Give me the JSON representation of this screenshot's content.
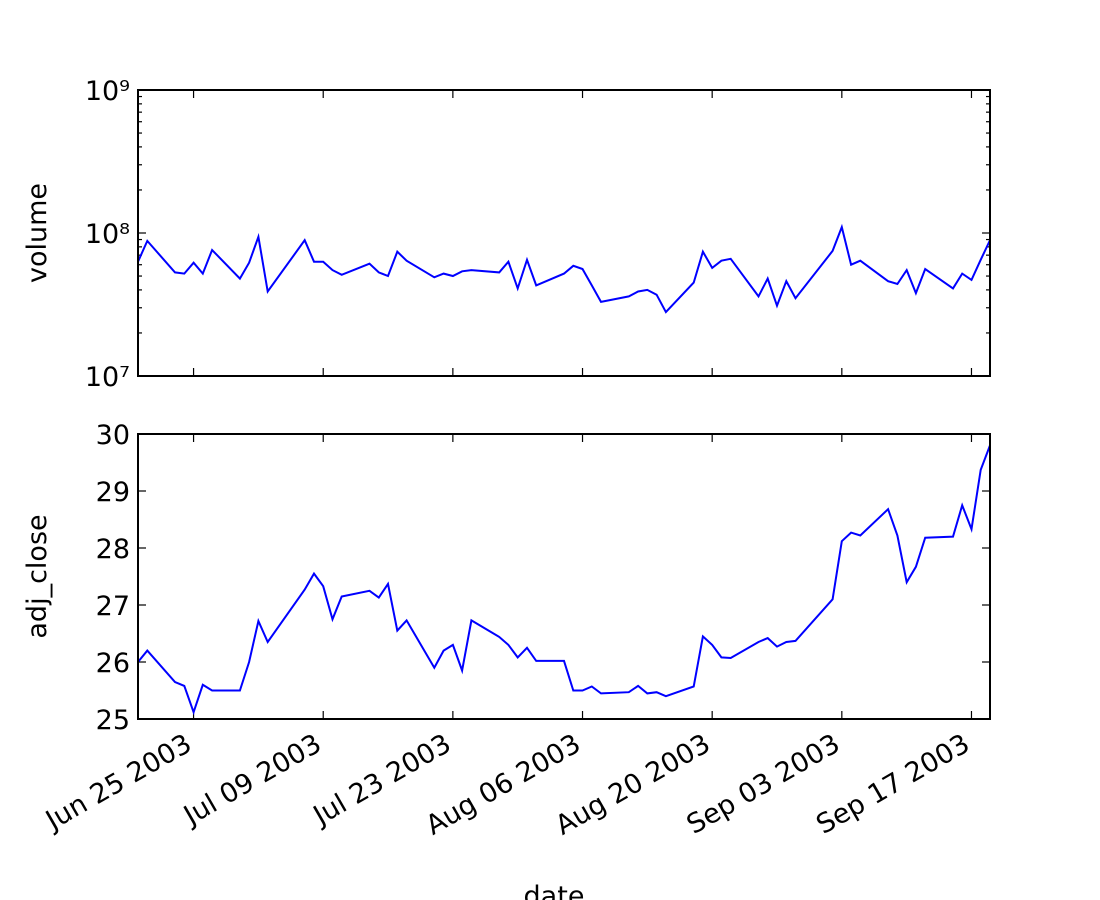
{
  "chart_data": [
    {
      "type": "line",
      "ylabel": "volume",
      "log_scale": true,
      "color": "#0000ff",
      "xlim": [
        "2003-06-19",
        "2003-09-19"
      ],
      "ylim": [
        10000000,
        1000000000
      ],
      "yticks": [
        {
          "value": 10000000,
          "label": "10⁷"
        },
        {
          "value": 100000000,
          "label": "10⁸"
        },
        {
          "value": 1000000000,
          "label": "10⁹"
        }
      ],
      "x": [
        "2003-06-19",
        "2003-06-20",
        "2003-06-23",
        "2003-06-24",
        "2003-06-25",
        "2003-06-26",
        "2003-06-27",
        "2003-06-30",
        "2003-07-01",
        "2003-07-02",
        "2003-07-03",
        "2003-07-07",
        "2003-07-08",
        "2003-07-09",
        "2003-07-10",
        "2003-07-11",
        "2003-07-14",
        "2003-07-15",
        "2003-07-16",
        "2003-07-17",
        "2003-07-18",
        "2003-07-21",
        "2003-07-22",
        "2003-07-23",
        "2003-07-24",
        "2003-07-25",
        "2003-07-28",
        "2003-07-29",
        "2003-07-30",
        "2003-07-31",
        "2003-08-01",
        "2003-08-04",
        "2003-08-05",
        "2003-08-06",
        "2003-08-07",
        "2003-08-08",
        "2003-08-11",
        "2003-08-12",
        "2003-08-13",
        "2003-08-14",
        "2003-08-15",
        "2003-08-18",
        "2003-08-19",
        "2003-08-20",
        "2003-08-21",
        "2003-08-22",
        "2003-08-25",
        "2003-08-26",
        "2003-08-27",
        "2003-08-28",
        "2003-08-29",
        "2003-09-02",
        "2003-09-03",
        "2003-09-04",
        "2003-09-05",
        "2003-09-08",
        "2003-09-09",
        "2003-09-10",
        "2003-09-11",
        "2003-09-12",
        "2003-09-15",
        "2003-09-16",
        "2003-09-17",
        "2003-09-18",
        "2003-09-19"
      ],
      "values": [
        63000000,
        88000000,
        53000000,
        52000000,
        62000000,
        52000000,
        76000000,
        48000000,
        62000000,
        94000000,
        39000000,
        89000000,
        63000000,
        63000000,
        55000000,
        51000000,
        61000000,
        53000000,
        50000000,
        74000000,
        64000000,
        49000000,
        52000000,
        50000000,
        54000000,
        55000000,
        53000000,
        63000000,
        41000000,
        65000000,
        43000000,
        52000000,
        59000000,
        56000000,
        43000000,
        33000000,
        36000000,
        39000000,
        40000000,
        37000000,
        28000000,
        45000000,
        74000000,
        57000000,
        64000000,
        66000000,
        36000000,
        48000000,
        31000000,
        46000000,
        35000000,
        75000000,
        110000000,
        60000000,
        64000000,
        46000000,
        44000000,
        55000000,
        38000000,
        56000000,
        41000000,
        52000000,
        47000000,
        65000000,
        89000000
      ]
    },
    {
      "type": "line",
      "ylabel": "adj_close",
      "xlabel": "date",
      "color": "#0000ff",
      "xlim": [
        "2003-06-19",
        "2003-09-19"
      ],
      "xticks": [
        {
          "value": "2003-06-25",
          "label": "Jun 25 2003"
        },
        {
          "value": "2003-07-09",
          "label": "Jul 09 2003"
        },
        {
          "value": "2003-07-23",
          "label": "Jul 23 2003"
        },
        {
          "value": "2003-08-06",
          "label": "Aug 06 2003"
        },
        {
          "value": "2003-08-20",
          "label": "Aug 20 2003"
        },
        {
          "value": "2003-09-03",
          "label": "Sep 03 2003"
        },
        {
          "value": "2003-09-17",
          "label": "Sep 17 2003"
        }
      ],
      "ylim": [
        25,
        30
      ],
      "yticks": [
        25,
        26,
        27,
        28,
        29,
        30
      ],
      "x": [
        "2003-06-19",
        "2003-06-20",
        "2003-06-23",
        "2003-06-24",
        "2003-06-25",
        "2003-06-26",
        "2003-06-27",
        "2003-06-30",
        "2003-07-01",
        "2003-07-02",
        "2003-07-03",
        "2003-07-07",
        "2003-07-08",
        "2003-07-09",
        "2003-07-10",
        "2003-07-11",
        "2003-07-14",
        "2003-07-15",
        "2003-07-16",
        "2003-07-17",
        "2003-07-18",
        "2003-07-21",
        "2003-07-22",
        "2003-07-23",
        "2003-07-24",
        "2003-07-25",
        "2003-07-28",
        "2003-07-29",
        "2003-07-30",
        "2003-07-31",
        "2003-08-01",
        "2003-08-04",
        "2003-08-05",
        "2003-08-06",
        "2003-08-07",
        "2003-08-08",
        "2003-08-11",
        "2003-08-12",
        "2003-08-13",
        "2003-08-14",
        "2003-08-15",
        "2003-08-18",
        "2003-08-19",
        "2003-08-20",
        "2003-08-21",
        "2003-08-22",
        "2003-08-25",
        "2003-08-26",
        "2003-08-27",
        "2003-08-28",
        "2003-08-29",
        "2003-09-02",
        "2003-09-03",
        "2003-09-04",
        "2003-09-05",
        "2003-09-08",
        "2003-09-09",
        "2003-09-10",
        "2003-09-11",
        "2003-09-12",
        "2003-09-15",
        "2003-09-16",
        "2003-09-17",
        "2003-09-18",
        "2003-09-19"
      ],
      "values": [
        26.0,
        26.2,
        25.65,
        25.58,
        25.12,
        25.6,
        25.5,
        25.5,
        26.0,
        26.72,
        26.35,
        27.27,
        27.55,
        27.33,
        26.75,
        27.15,
        27.25,
        27.13,
        27.37,
        26.55,
        26.73,
        25.9,
        26.2,
        26.3,
        25.85,
        26.73,
        26.44,
        26.3,
        26.08,
        26.25,
        26.02,
        26.02,
        25.5,
        25.5,
        25.57,
        25.45,
        25.47,
        25.58,
        25.45,
        25.47,
        25.4,
        25.57,
        26.45,
        26.3,
        26.08,
        26.07,
        26.35,
        26.42,
        26.27,
        26.35,
        26.37,
        27.1,
        28.12,
        28.27,
        28.22,
        28.68,
        28.22,
        27.4,
        27.67,
        28.18,
        28.2,
        28.75,
        28.33,
        29.37,
        29.8
      ]
    }
  ]
}
